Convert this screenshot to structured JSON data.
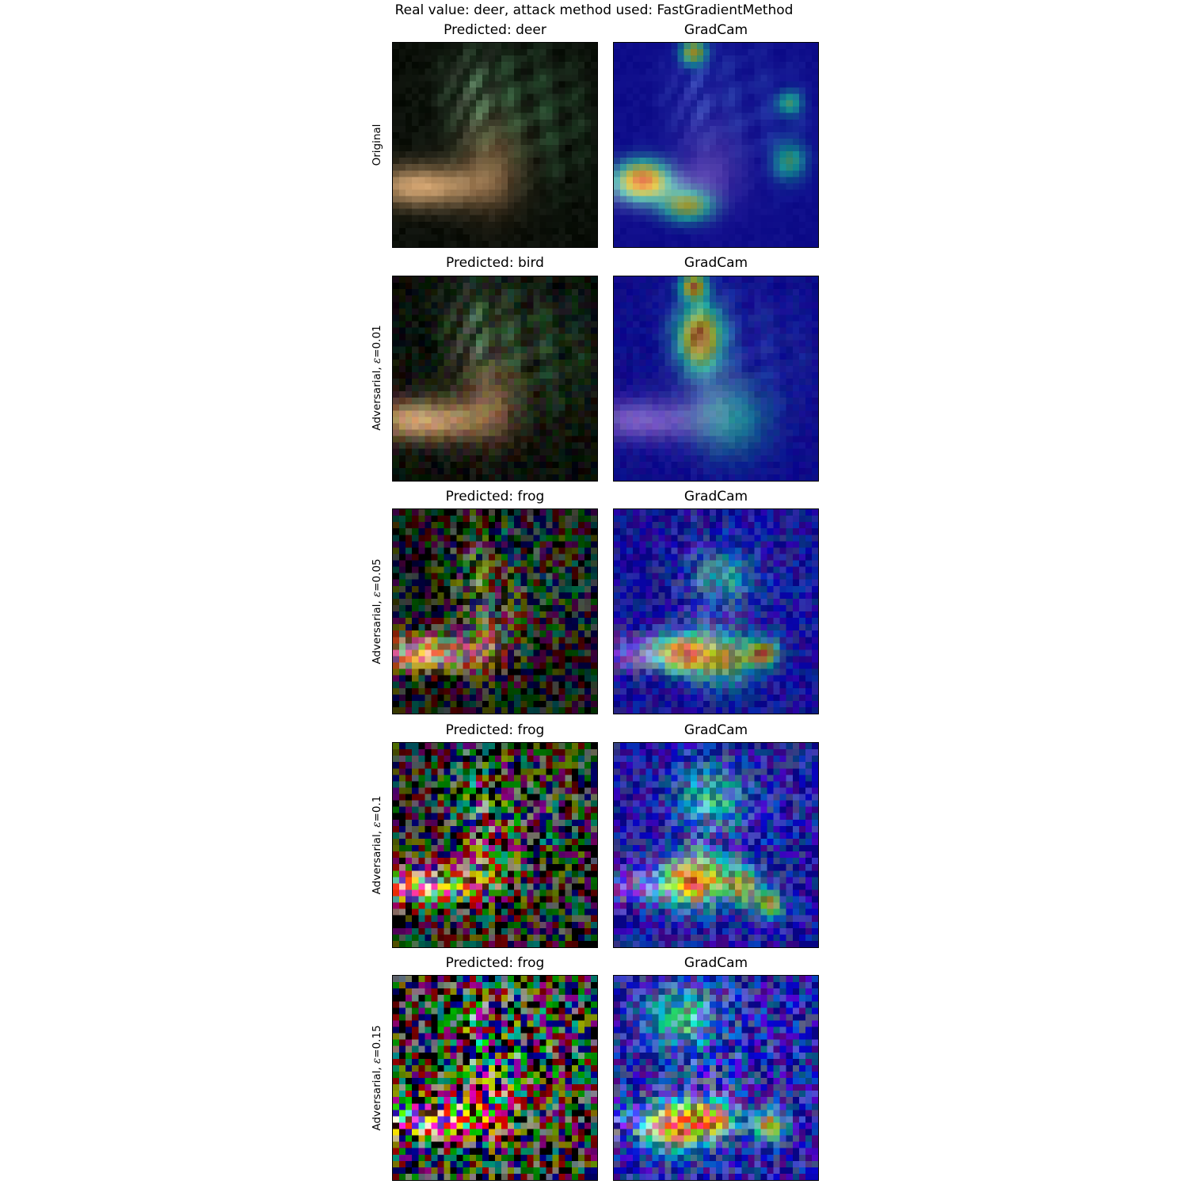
{
  "figure": {
    "suptitle": "Real value: deer, attack method used: FastGradientMethod",
    "rows": [
      {
        "row_label": "Original",
        "epsilon": null,
        "left_title": "Predicted: deer",
        "right_title": "GradCam"
      },
      {
        "row_label_prefix": "Adversarial, ",
        "row_label_symbol": "ε",
        "row_label_value": "=0.01",
        "epsilon": 0.01,
        "left_title": "Predicted: bird",
        "right_title": "GradCam"
      },
      {
        "row_label_prefix": "Adversarial, ",
        "row_label_symbol": "ε",
        "row_label_value": "=0.05",
        "epsilon": 0.05,
        "left_title": "Predicted: frog",
        "right_title": "GradCam"
      },
      {
        "row_label_prefix": "Adversarial, ",
        "row_label_symbol": "ε",
        "row_label_value": "=0.1",
        "epsilon": 0.1,
        "left_title": "Predicted: frog",
        "right_title": "GradCam"
      },
      {
        "row_label_prefix": "Adversarial, ",
        "row_label_symbol": "ε",
        "row_label_value": "=0.15",
        "epsilon": 0.15,
        "left_title": "Predicted: frog",
        "right_title": "GradCam"
      }
    ]
  }
}
